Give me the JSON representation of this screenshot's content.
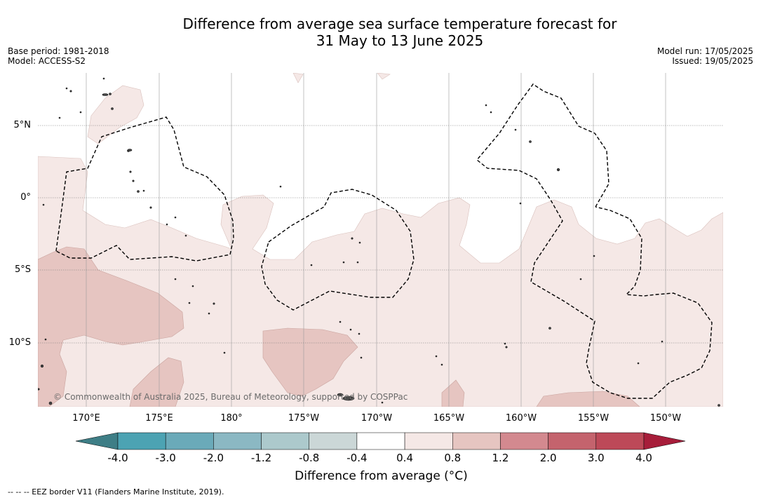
{
  "title": {
    "line1": "Difference from average sea surface temperature forecast for",
    "line2": "31 May to 13 June 2025"
  },
  "meta_left": {
    "base_period": "Base period: 1981-2018",
    "model": "Model: ACCESS-S2"
  },
  "meta_right": {
    "model_run": "Model run: 17/05/2025",
    "issued": "Issued: 19/05/2025"
  },
  "latitude_labels": [
    "5°N",
    "0°",
    "5°S",
    "10°S"
  ],
  "longitude_labels": [
    "170°E",
    "175°E",
    "180°",
    "175°W",
    "170°W",
    "165°W",
    "160°W",
    "155°W",
    "150°W"
  ],
  "colorbar": {
    "ticks": [
      "-4.0",
      "-3.0",
      "-2.0",
      "-1.2",
      "-0.8",
      "-0.4",
      "0.4",
      "0.8",
      "1.2",
      "2.0",
      "3.0",
      "4.0"
    ],
    "colors": [
      "#3e7e86",
      "#4ca3b3",
      "#6aaab9",
      "#8bb8c3",
      "#acc9cc",
      "#cbd7d7",
      "#ffffff",
      "#f5e8e6",
      "#e6c5c1",
      "#d3898f",
      "#c4636d",
      "#bd4958",
      "#a71d3a"
    ],
    "label": "Difference from average (°C)"
  },
  "copyright": "© Commonwealth of Australia 2025, Bureau of Meteorology, supported by COSPPac",
  "footnote": "--  --  -- EEZ border V11 (Flanders Marine Institute, 2019).",
  "map_colors": {
    "anomaly_0_4_to_0_8": "#f5e8e6",
    "anomaly_0_8_to_1_2": "#e6c5c1",
    "eez_border": "#000000",
    "land": "#444444"
  }
}
